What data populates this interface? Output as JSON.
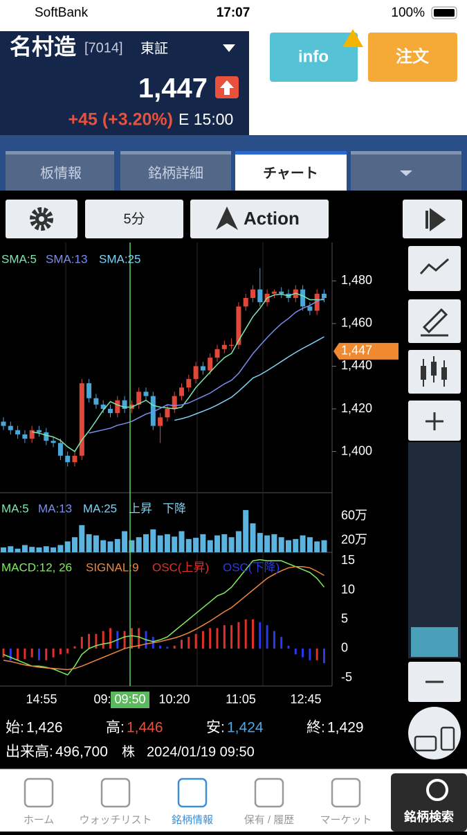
{
  "status": {
    "carrier": "SoftBank",
    "time": "17:07",
    "battery": "100%"
  },
  "stock": {
    "name": "名村造",
    "code": "[7014]",
    "market": "東証",
    "price": "1,447",
    "change": "+45 (+3.20%)",
    "time": "E 15:00"
  },
  "buttons": {
    "info": "info",
    "order": "注文"
  },
  "tabs": [
    "板情報",
    "銘柄詳細",
    "チャート"
  ],
  "toolbar": {
    "interval": "5分",
    "action": "Action"
  },
  "chart_data": {
    "type": "candlestick",
    "sma": [
      {
        "name": "SMA:5",
        "period": 5,
        "color": "#7de8b0"
      },
      {
        "name": "SMA:13",
        "period": 13,
        "color": "#7b8ff0"
      },
      {
        "name": "SMA:25",
        "period": 25,
        "color": "#7dd3f5"
      }
    ],
    "open": [
      1414,
      1412,
      1410,
      1408,
      1406,
      1410,
      1409,
      1405,
      1404,
      1398,
      1395,
      1398,
      1432,
      1425,
      1422,
      1420,
      1418,
      1424,
      1420,
      1422,
      1428,
      1426,
      1412,
      1416,
      1420,
      1426,
      1430,
      1434,
      1440,
      1438,
      1444,
      1448,
      1450,
      1450,
      1468,
      1472,
      1476,
      1470,
      1474,
      1475,
      1474,
      1472,
      1476,
      1468,
      1466,
      1474
    ],
    "high": [
      1416,
      1414,
      1412,
      1410,
      1412,
      1412,
      1411,
      1407,
      1406,
      1400,
      1400,
      1434,
      1434,
      1427,
      1424,
      1422,
      1426,
      1426,
      1424,
      1430,
      1430,
      1428,
      1418,
      1422,
      1428,
      1432,
      1436,
      1442,
      1442,
      1446,
      1450,
      1452,
      1453,
      1470,
      1474,
      1478,
      1486,
      1476,
      1476,
      1477,
      1476,
      1478,
      1478,
      1470,
      1476,
      1476
    ],
    "low": [
      1410,
      1408,
      1406,
      1404,
      1404,
      1407,
      1403,
      1402,
      1396,
      1393,
      1393,
      1396,
      1423,
      1420,
      1418,
      1416,
      1416,
      1418,
      1418,
      1420,
      1424,
      1410,
      1404,
      1414,
      1418,
      1424,
      1428,
      1432,
      1436,
      1436,
      1442,
      1446,
      1448,
      1448,
      1466,
      1470,
      1468,
      1468,
      1472,
      1472,
      1470,
      1470,
      1466,
      1464,
      1464,
      1470
    ],
    "close": [
      1412,
      1410,
      1408,
      1406,
      1410,
      1409,
      1405,
      1404,
      1398,
      1395,
      1398,
      1432,
      1425,
      1422,
      1420,
      1418,
      1424,
      1420,
      1422,
      1428,
      1426,
      1412,
      1416,
      1420,
      1426,
      1430,
      1434,
      1440,
      1438,
      1444,
      1448,
      1450,
      1450,
      1468,
      1472,
      1476,
      1470,
      1474,
      1475,
      1474,
      1472,
      1476,
      1468,
      1466,
      1474,
      1472
    ],
    "ylim": [
      1381,
      1498
    ],
    "yticks": [
      {
        "value": 1480,
        "label": "1,480"
      },
      {
        "value": 1460,
        "label": "1,460"
      },
      {
        "value": 1440,
        "label": "1,440"
      },
      {
        "value": 1420,
        "label": "1,420"
      },
      {
        "value": 1400,
        "label": "1,400"
      }
    ],
    "price_tag": {
      "value": 1447,
      "label": "1,447"
    },
    "xticks": [
      "14:55",
      "09:",
      "09:50",
      "10:20",
      "11:05",
      "12:45"
    ],
    "volume": {
      "legend": [
        "MA:5",
        "MA:13",
        "MA:25",
        "上昇",
        "下降"
      ],
      "values": [
        80000,
        100000,
        60000,
        120000,
        90000,
        80000,
        100000,
        80000,
        120000,
        180000,
        250000,
        450000,
        300000,
        280000,
        200000,
        180000,
        220000,
        350000,
        200000,
        250000,
        300000,
        380000,
        280000,
        300000,
        260000,
        350000,
        220000,
        240000,
        300000,
        200000,
        280000,
        300000,
        250000,
        350000,
        700000,
        480000,
        320000,
        280000,
        300000,
        250000,
        200000,
        220000,
        280000,
        250000,
        180000,
        200000
      ],
      "ylim": [
        0,
        977000
      ],
      "yticks": [
        {
          "value": 600000,
          "label": "60万"
        },
        {
          "value": 200000,
          "label": "20万"
        }
      ]
    },
    "macd": {
      "legend": [
        "MACD:12, 26",
        "SIGNAL:9",
        "OSC(上昇)",
        "OSC(下降)"
      ],
      "macd": [
        -1,
        -1.5,
        -2,
        -2.5,
        -3,
        -3,
        -3.2,
        -3.5,
        -4,
        -4.5,
        -3,
        -1,
        0,
        0.5,
        0.8,
        1,
        1.5,
        2,
        2.2,
        2,
        1.5,
        1.2,
        1.5,
        2,
        3,
        4,
        5,
        6,
        7,
        8,
        9,
        9.5,
        10.5,
        12,
        13.5,
        15,
        15.2,
        15,
        15,
        15,
        14.5,
        14,
        13.5,
        13,
        12,
        10.5
      ],
      "signal": [
        -2,
        -2.2,
        -2.5,
        -2.8,
        -3,
        -3.2,
        -3.3,
        -3.4,
        -3.5,
        -3.6,
        -3.4,
        -3,
        -2.5,
        -2,
        -1.5,
        -1,
        -0.5,
        0,
        0.3,
        0.5,
        0.8,
        1,
        1.2,
        1.5,
        1.8,
        2.2,
        2.7,
        3.3,
        4,
        4.7,
        5.5,
        6.3,
        7,
        8,
        9,
        10,
        11,
        12,
        12.7,
        13.3,
        13.8,
        14,
        14,
        13.8,
        13.2,
        12.5
      ],
      "osc": [
        -1.5,
        -2,
        -2,
        -1.8,
        -1.5,
        -2,
        -2,
        -1.5,
        -1,
        -0.8,
        0.4,
        2,
        2.5,
        2.5,
        3,
        3.5,
        3,
        3,
        3.5,
        3.5,
        3,
        2,
        0.5,
        0.3,
        0.5,
        1.5,
        2,
        2.5,
        3,
        3.5,
        3.5,
        4,
        4,
        4.5,
        5,
        5,
        4.5,
        4,
        3,
        2,
        0.5,
        -1,
        -1.5,
        -2,
        -2,
        -2.5
      ],
      "ylim": [
        -6.4,
        16.1
      ],
      "yticks": [
        15,
        10,
        5,
        0,
        -5
      ]
    }
  },
  "quote": {
    "open_label": "始:",
    "open": "1,426",
    "high_label": "高:",
    "high": "1,446",
    "low_label": "安:",
    "low": "1,424",
    "close_label": "終:",
    "close": "1,429",
    "volume_label": "出来高:",
    "volume": "496,700",
    "unit": "株",
    "datetime": "2024/01/19 09:50"
  },
  "nav": [
    "ホーム",
    "ウォッチリスト",
    "銘柄情報",
    "保有 / 履歴",
    "マーケット",
    "銘柄検索"
  ]
}
